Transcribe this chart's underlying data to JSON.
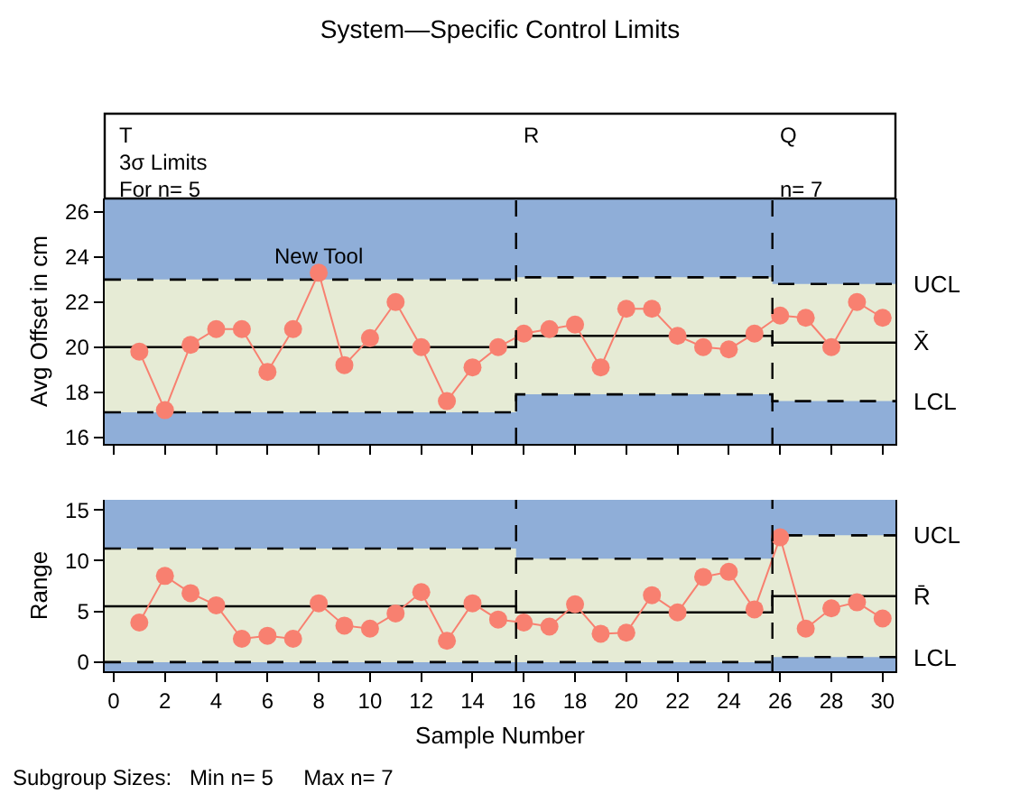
{
  "chart_data": [
    {
      "type": "line",
      "title": "System—Specific Control Limits",
      "ylabel": "Avg Offset in cm",
      "x": [
        1,
        2,
        3,
        4,
        5,
        6,
        7,
        8,
        9,
        10,
        11,
        12,
        13,
        14,
        15,
        16,
        17,
        18,
        19,
        20,
        21,
        22,
        23,
        24,
        25,
        26,
        27,
        28,
        29,
        30
      ],
      "series": [
        {
          "name": "UCL",
          "color": "#000000",
          "line_style": "dashed",
          "x": [
            -0.35,
            15.7,
            15.7,
            25.7,
            25.7,
            30.5
          ],
          "values": [
            23.0,
            23.0,
            23.1,
            23.1,
            22.8,
            22.8
          ]
        },
        {
          "name": "X̄",
          "color": "#000000",
          "line_style": "solid",
          "x": [
            -0.35,
            15.7,
            15.7,
            25.7,
            25.7,
            30.5
          ],
          "values": [
            20.0,
            20.0,
            20.5,
            20.5,
            20.2,
            20.2
          ],
          "lower": [
            17.1,
            17.1,
            17.9,
            17.9,
            17.6,
            17.6
          ],
          "upper": [
            23.0,
            23.0,
            23.1,
            23.1,
            22.8,
            22.8
          ]
        },
        {
          "name": "LCL",
          "color": "#000000",
          "line_style": "dashed",
          "x": [
            -0.35,
            15.7,
            15.7,
            25.7,
            25.7,
            30.5
          ],
          "values": [
            17.1,
            17.1,
            17.9,
            17.9,
            17.6,
            17.6
          ]
        },
        {
          "color": "#f88070",
          "marker": "circle",
          "line_style": "solid",
          "values": [
            19.8,
            17.2,
            20.1,
            20.8,
            20.8,
            18.9,
            20.8,
            23.3,
            19.2,
            20.4,
            22.0,
            20.0,
            17.6,
            19.1,
            20.0,
            20.6,
            20.8,
            21.0,
            19.1,
            21.7,
            21.7,
            20.5,
            20.0,
            19.9,
            20.6,
            21.4,
            21.3,
            20.0,
            22.0,
            21.3
          ]
        }
      ],
      "xlim": [
        -0.35,
        30.5
      ],
      "xticks": [
        0,
        2,
        4,
        6,
        8,
        10,
        12,
        14,
        16,
        18,
        20,
        22,
        24,
        26,
        28,
        30
      ],
      "ylim": [
        15.7,
        26.6
      ],
      "yticks": [
        16,
        18,
        20,
        22,
        24,
        26
      ],
      "tick_labels": "y",
      "grid": false,
      "legend": false,
      "bands": [
        {
          "axis": "y",
          "from": 15.7,
          "to": 26.6,
          "color": "#8faed8"
        }
      ],
      "ref_lines": [
        {
          "axis": "x",
          "value": 15.7,
          "label": "R",
          "line_style": "dashed"
        },
        {
          "axis": "x",
          "value": 25.7,
          "label": "Q",
          "line_style": "dashed"
        }
      ],
      "annotations": [
        "T",
        "3σ Limits",
        "For n= 5",
        "n= 7",
        {
          "text": "New Tool",
          "x": 8,
          "y": 24
        }
      ]
    },
    {
      "type": "line",
      "ylabel": "Range",
      "xlabel": "Sample Number",
      "x": [
        1,
        2,
        3,
        4,
        5,
        6,
        7,
        8,
        9,
        10,
        11,
        12,
        13,
        14,
        15,
        16,
        17,
        18,
        19,
        20,
        21,
        22,
        23,
        24,
        25,
        26,
        27,
        28,
        29,
        30
      ],
      "series": [
        {
          "name": "UCL",
          "color": "#000000",
          "line_style": "dashed",
          "x": [
            -0.35,
            15.7,
            15.7,
            25.7,
            25.7,
            30.5
          ],
          "values": [
            11.2,
            11.2,
            10.2,
            10.2,
            12.5,
            12.5
          ]
        },
        {
          "name": "R̄",
          "color": "#000000",
          "line_style": "solid",
          "x": [
            -0.35,
            15.7,
            15.7,
            25.7,
            25.7,
            30.5
          ],
          "values": [
            5.5,
            5.5,
            4.9,
            4.9,
            6.5,
            6.5
          ],
          "lower": [
            0,
            0,
            0,
            0,
            0.5,
            0.5
          ],
          "upper": [
            11.2,
            11.2,
            10.2,
            10.2,
            12.5,
            12.5
          ]
        },
        {
          "name": "LCL",
          "color": "#000000",
          "line_style": "dashed",
          "x": [
            -0.35,
            15.7,
            15.7,
            25.7,
            25.7,
            30.5
          ],
          "values": [
            0,
            0,
            0,
            0,
            0.5,
            0.5
          ]
        },
        {
          "color": "#f88070",
          "marker": "circle",
          "line_style": "solid",
          "values": [
            3.9,
            8.5,
            6.8,
            5.6,
            2.3,
            2.6,
            2.3,
            5.8,
            3.6,
            3.3,
            4.8,
            6.9,
            2.1,
            5.8,
            4.2,
            3.9,
            3.5,
            5.7,
            2.8,
            2.9,
            6.6,
            4.9,
            8.4,
            8.9,
            5.2,
            12.3,
            3.3,
            5.3,
            5.9,
            4.3
          ]
        }
      ],
      "xlim": [
        -0.35,
        30.5
      ],
      "xticks": [
        0,
        2,
        4,
        6,
        8,
        10,
        12,
        14,
        16,
        18,
        20,
        22,
        24,
        26,
        28,
        30
      ],
      "ylim": [
        -0.9,
        16.0
      ],
      "yticks": [
        0,
        5,
        10,
        15
      ],
      "grid": false,
      "legend": false,
      "bands": [
        {
          "axis": "y",
          "from": -0.9,
          "to": 16.0,
          "color": "#8faed8"
        }
      ],
      "ref_lines": [
        {
          "axis": "x",
          "value": 15.7,
          "line_style": "dashed"
        },
        {
          "axis": "x",
          "value": 25.7,
          "line_style": "dashed"
        }
      ],
      "annotations": [
        "Subgroup Sizes:   Min n= 5     Max n= 7"
      ]
    }
  ]
}
